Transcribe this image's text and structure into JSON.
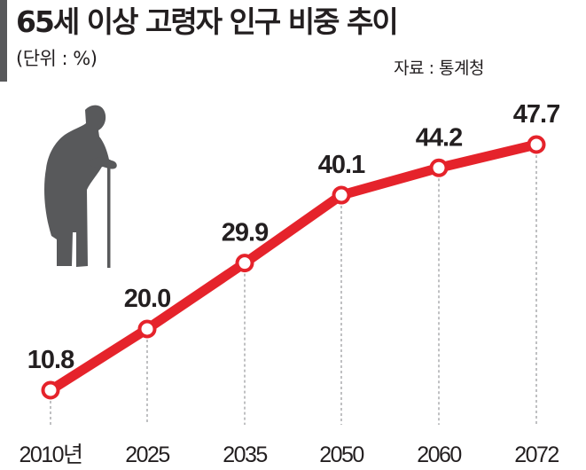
{
  "header": {
    "title": "65세 이상 고령자 인구 비중 추이",
    "unit": "(단위 : %)",
    "source": "자료 : 통계청"
  },
  "chart_data": {
    "type": "line",
    "title": "65세 이상 고령자 인구 비중 추이",
    "xlabel": "",
    "ylabel": "",
    "categories": [
      "2010년",
      "2025",
      "2035",
      "2050",
      "2060",
      "2072"
    ],
    "values": [
      10.8,
      20.0,
      29.9,
      40.1,
      44.2,
      47.7
    ],
    "data_labels": [
      "10.8",
      "20.0",
      "29.9",
      "40.1",
      "44.2",
      "47.7"
    ],
    "ylim": [
      0,
      55
    ],
    "grid": false,
    "legend": "none"
  },
  "colors": {
    "line": "#e5232b",
    "marker_fill": "#ffffff",
    "text": "#231f20",
    "guide": "#9d9fa2",
    "silhouette": "#58595b"
  },
  "icons": {
    "illustration": "elderly-person-with-cane-icon"
  }
}
